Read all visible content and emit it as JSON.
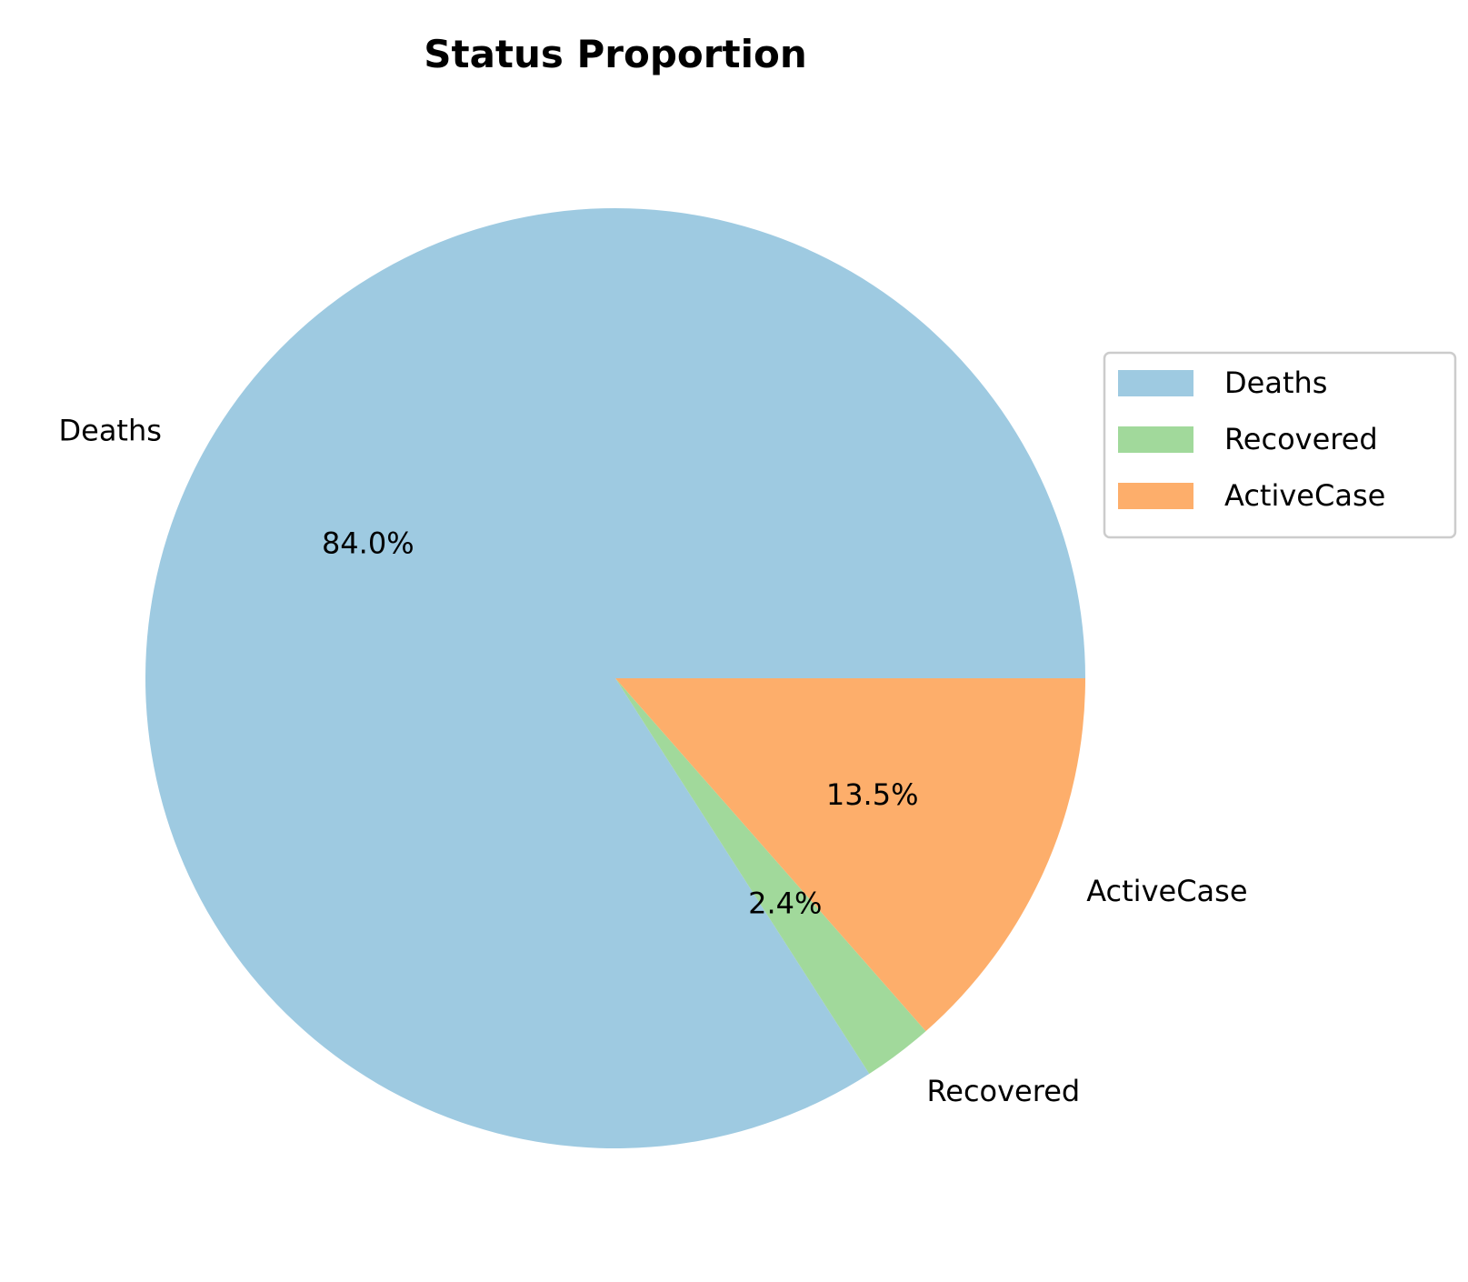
{
  "chart_data": {
    "type": "pie",
    "title": "Status Proportion",
    "slices": [
      {
        "label": "Deaths",
        "value": 84.0,
        "pct_label": "84.0%",
        "color": "#9ecae1"
      },
      {
        "label": "Recovered",
        "value": 2.4,
        "pct_label": "2.4%",
        "color": "#a1d99b"
      },
      {
        "label": "ActiveCase",
        "value": 13.5,
        "pct_label": "13.5%",
        "color": "#fdae6b"
      }
    ],
    "start_angle_deg": 0,
    "direction": "counterclockwise",
    "legend_position": "right"
  }
}
